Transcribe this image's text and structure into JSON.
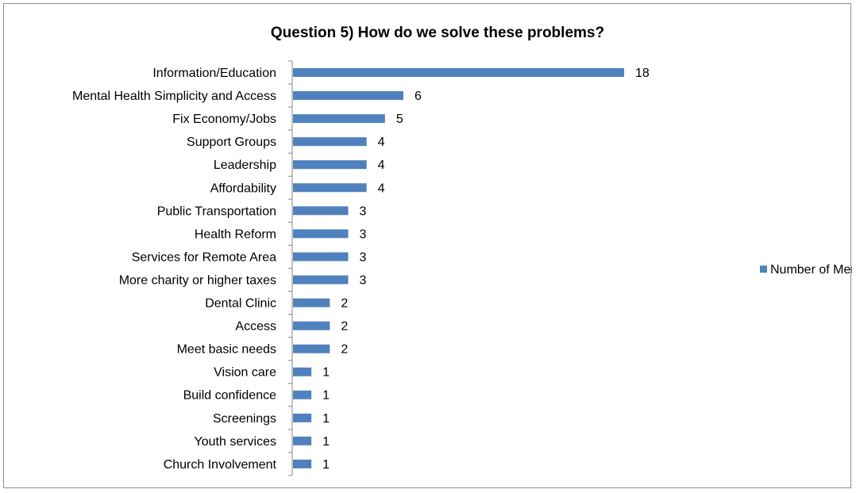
{
  "chart_data": {
    "type": "bar",
    "orientation": "horizontal",
    "title": "Question 5) How do we solve these problems?",
    "categories": [
      "Information/Education",
      "Mental Health Simplicity and Access",
      "Fix Economy/Jobs",
      "Support Groups",
      "Leadership",
      "Affordability",
      "Public Transportation",
      "Health Reform",
      "Services for Remote Area",
      "More charity or higher taxes",
      "Dental Clinic",
      "Access",
      "Meet basic needs",
      "Vision care",
      "Build confidence",
      "Screenings",
      "Youth services",
      "Church Involvement"
    ],
    "series": [
      {
        "name": "Number of Mentions",
        "values": [
          18,
          6,
          5,
          4,
          4,
          4,
          3,
          3,
          3,
          3,
          2,
          2,
          2,
          1,
          1,
          1,
          1,
          1
        ],
        "color": "#4f81bd"
      }
    ],
    "xlim": [
      0,
      18
    ],
    "grid": false,
    "data_labels": true,
    "legend_position": "right"
  }
}
